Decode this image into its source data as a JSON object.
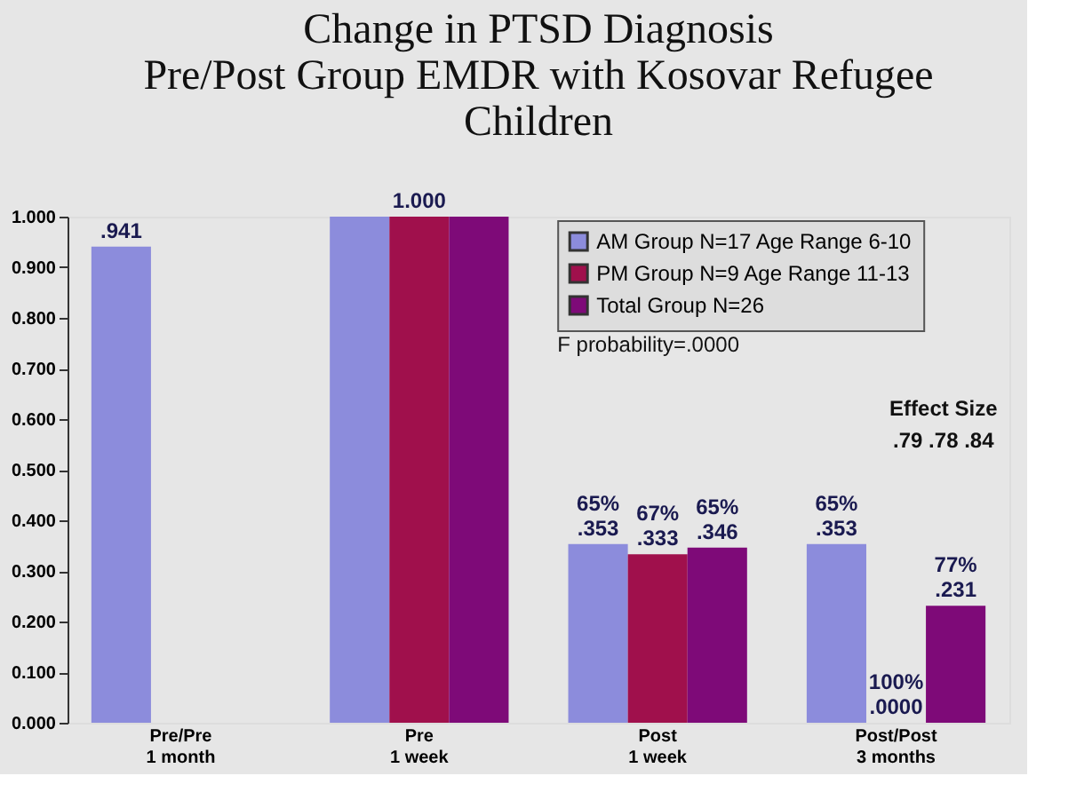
{
  "chart_data": {
    "type": "bar",
    "title": "Change in PTSD Diagnosis\nPre/Post Group EMDR with Kosovar Refugee\nChildren",
    "categories": [
      "Pre/Pre\n1 month",
      "Pre\n1 week",
      "Post\n1 week",
      "Post/Post\n3 months"
    ],
    "series": [
      {
        "name": "AM Group N=17 Age Range 6-10",
        "color": "#8c8cdc",
        "values": [
          0.941,
          1.0,
          0.353,
          0.353
        ],
        "value_labels": [
          ".941",
          null,
          "65%\n.353",
          "65%\n.353"
        ]
      },
      {
        "name": "PM Group N=9 Age Range 11-13",
        "color": "#a0104c",
        "values": [
          null,
          1.0,
          0.333,
          0.0
        ],
        "value_labels": [
          null,
          "1.000",
          "67%\n.333",
          "100%\n.0000"
        ]
      },
      {
        "name": "Total Group N=26",
        "color": "#7e0a78",
        "values": [
          null,
          1.0,
          0.346,
          0.231
        ],
        "value_labels": [
          null,
          null,
          "65%\n.346",
          "77%\n.231"
        ]
      }
    ],
    "ylim": [
      0,
      1
    ],
    "yticks": [
      {
        "value": 0,
        "label": "0.000"
      },
      {
        "value": 0.1,
        "label": "0.100"
      },
      {
        "value": 0.2,
        "label": "0.200"
      },
      {
        "value": 0.3,
        "label": "0.300"
      },
      {
        "value": 0.4,
        "label": "0.400"
      },
      {
        "value": 0.5,
        "label": "0.500"
      },
      {
        "value": 0.6,
        "label": "0.600"
      },
      {
        "value": 0.7,
        "label": "0.700"
      },
      {
        "value": 0.8,
        "label": "0.800"
      },
      {
        "value": 0.9,
        "label": "0.900"
      },
      {
        "value": 1,
        "label": "1.000"
      }
    ],
    "annotations": [
      "F probability=.0000",
      "Effect Size",
      ".79   .78   .84"
    ],
    "legend": "top right",
    "grid": false
  }
}
